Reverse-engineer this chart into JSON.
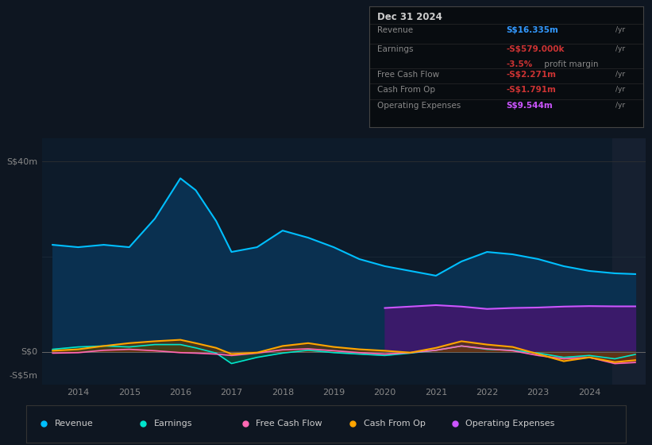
{
  "background_color": "#0e1621",
  "plot_bg_color": "#0d1b2a",
  "years": [
    2013.5,
    2014.0,
    2014.5,
    2015.0,
    2015.5,
    2016.0,
    2016.3,
    2016.7,
    2017.0,
    2017.5,
    2018.0,
    2018.5,
    2019.0,
    2019.5,
    2020.0,
    2020.5,
    2021.0,
    2021.5,
    2022.0,
    2022.5,
    2023.0,
    2023.5,
    2024.0,
    2024.5,
    2024.9
  ],
  "revenue": [
    22.5,
    22.0,
    22.5,
    22.0,
    28.0,
    36.5,
    34.0,
    27.5,
    21.0,
    22.0,
    25.5,
    24.0,
    22.0,
    19.5,
    18.0,
    17.0,
    16.0,
    19.0,
    21.0,
    20.5,
    19.5,
    18.0,
    17.0,
    16.5,
    16.335
  ],
  "earnings": [
    0.5,
    1.0,
    1.2,
    1.0,
    1.5,
    1.5,
    0.8,
    -0.3,
    -2.5,
    -1.2,
    -0.3,
    0.3,
    -0.2,
    -0.5,
    -0.8,
    -0.3,
    0.3,
    1.2,
    0.5,
    0.3,
    -0.3,
    -1.2,
    -0.8,
    -1.5,
    -0.579
  ],
  "free_cash_flow": [
    -0.3,
    -0.2,
    0.3,
    0.5,
    0.2,
    -0.2,
    -0.3,
    -0.5,
    -0.8,
    -0.3,
    0.4,
    0.6,
    0.2,
    -0.2,
    -0.5,
    -0.2,
    0.3,
    1.2,
    0.6,
    0.2,
    -0.8,
    -1.5,
    -1.2,
    -2.5,
    -2.271
  ],
  "cash_from_op": [
    0.2,
    0.5,
    1.2,
    1.8,
    2.2,
    2.5,
    1.8,
    0.8,
    -0.5,
    -0.2,
    1.2,
    1.8,
    1.0,
    0.5,
    0.2,
    -0.2,
    0.8,
    2.2,
    1.5,
    1.0,
    -0.5,
    -2.0,
    -1.2,
    -2.2,
    -1.791
  ],
  "op_expenses_x": [
    2020.0,
    2020.5,
    2021.0,
    2021.5,
    2022.0,
    2022.5,
    2023.0,
    2023.5,
    2024.0,
    2024.5,
    2024.9
  ],
  "op_expenses_y": [
    9.2,
    9.5,
    9.8,
    9.5,
    9.0,
    9.2,
    9.3,
    9.5,
    9.6,
    9.544,
    9.544
  ],
  "revenue_color": "#00bfff",
  "earnings_color": "#00e5cc",
  "free_cash_flow_color": "#ff69b4",
  "cash_from_op_color": "#ffa500",
  "op_expenses_color": "#cc55ff",
  "revenue_fill": "#0a3050",
  "earnings_fill": "#0d4a3a",
  "free_cash_flow_fill": "#7a1a40",
  "cash_from_op_fill": "#6a3a00",
  "op_expenses_fill": "#3a1a6a",
  "ylim_min": -7,
  "ylim_max": 45,
  "xlim_min": 2013.3,
  "xlim_max": 2025.1,
  "xticks": [
    2014,
    2015,
    2016,
    2017,
    2018,
    2019,
    2020,
    2021,
    2022,
    2023,
    2024
  ],
  "highlight_start": 2024.45,
  "highlight_color": "#162030",
  "info_box": {
    "date": "Dec 31 2024",
    "revenue_label": "Revenue",
    "revenue_value": "S$16.335m",
    "revenue_color": "#3399ff",
    "earnings_label": "Earnings",
    "earnings_value": "-S$579.000k",
    "earnings_color": "#cc3333",
    "margin_value": "-3.5%",
    "margin_label": " profit margin",
    "margin_color": "#cc3333",
    "fcf_label": "Free Cash Flow",
    "fcf_value": "-S$2.271m",
    "fcf_color": "#cc3333",
    "cop_label": "Cash From Op",
    "cop_value": "-S$1.791m",
    "cop_color": "#cc3333",
    "opex_label": "Operating Expenses",
    "opex_value": "S$9.544m",
    "opex_color": "#cc55ff",
    "box_bg": "#080c10",
    "box_border": "#444444",
    "text_color": "#888888",
    "title_color": "#cccccc",
    "yr_color": "#888888"
  },
  "ylabel_40": "S$40m",
  "ylabel_0": "S$0",
  "ylabel_n5": "-S$5m",
  "legend_items": [
    {
      "label": "Revenue",
      "color": "#00bfff"
    },
    {
      "label": "Earnings",
      "color": "#00e5cc"
    },
    {
      "label": "Free Cash Flow",
      "color": "#ff69b4"
    },
    {
      "label": "Cash From Op",
      "color": "#ffa500"
    },
    {
      "label": "Operating Expenses",
      "color": "#cc55ff"
    }
  ]
}
